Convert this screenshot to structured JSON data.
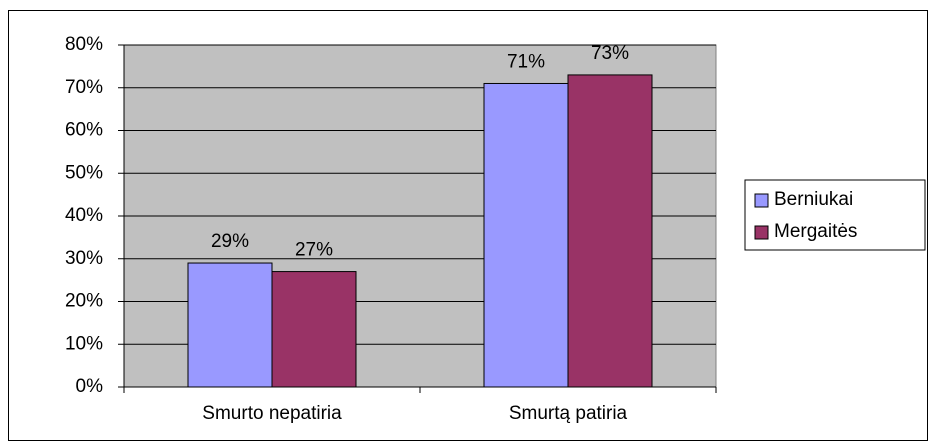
{
  "chart_data": {
    "type": "bar",
    "categories": [
      "Smurto nepatiria",
      "Smurtą patiria"
    ],
    "series": [
      {
        "name": "Berniukai",
        "color": "#9999ff",
        "values": [
          29,
          71
        ],
        "value_labels": [
          "29%",
          "71%"
        ]
      },
      {
        "name": "Mergaitės",
        "color": "#993366",
        "values": [
          27,
          73
        ],
        "value_labels": [
          "27%",
          "73%"
        ]
      }
    ],
    "ylim": [
      0,
      80
    ],
    "yticks": [
      {
        "value": 0,
        "label": "0%"
      },
      {
        "value": 10,
        "label": "10%"
      },
      {
        "value": 20,
        "label": "20%"
      },
      {
        "value": 30,
        "label": "30%"
      },
      {
        "value": 40,
        "label": "40%"
      },
      {
        "value": 50,
        "label": "50%"
      },
      {
        "value": 60,
        "label": "60%"
      },
      {
        "value": 70,
        "label": "70%"
      },
      {
        "value": 80,
        "label": "80%"
      }
    ],
    "grid": true,
    "plot_background": "#c0c0c0",
    "legend": "right"
  }
}
